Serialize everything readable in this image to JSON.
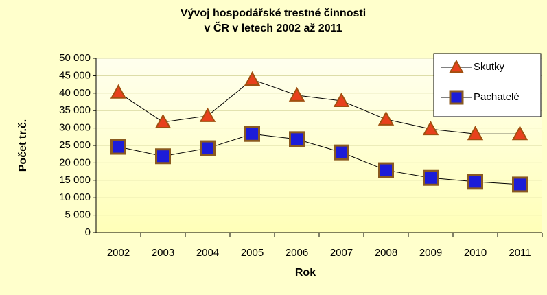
{
  "chart_data": {
    "type": "line",
    "title": [
      "Vývoj hospodářské trestné činnosti",
      "v ČR v letech 2002 až 2011"
    ],
    "x_label": "Rok",
    "y_label": "Počet tr.č.",
    "categories": [
      "2002",
      "2003",
      "2004",
      "2005",
      "2006",
      "2007",
      "2008",
      "2009",
      "2010",
      "2011"
    ],
    "series": [
      {
        "name": "Skutky",
        "color": "#e8401c",
        "marker": "triangle",
        "values": [
          40200,
          31700,
          33500,
          43900,
          39400,
          37800,
          32500,
          29700,
          28300,
          28300
        ]
      },
      {
        "name": "Pachatelé",
        "color": "#1c1cd8",
        "marker": "square",
        "values": [
          24600,
          21900,
          24200,
          28300,
          26800,
          23000,
          17900,
          15700,
          14600,
          13800
        ]
      }
    ],
    "ylim": [
      0,
      50000
    ],
    "yticks": [
      0,
      {
        "value": 5000,
        "label": "5 000"
      },
      {
        "value": 10000,
        "label": "10 000"
      },
      {
        "value": 15000,
        "label": "15 000"
      },
      {
        "value": 20000,
        "label": "20 000"
      },
      {
        "value": 25000,
        "label": "25 000"
      },
      {
        "value": 30000,
        "label": "30 000"
      },
      {
        "value": 35000,
        "label": "35 000"
      },
      {
        "value": 40000,
        "label": "40 000"
      },
      {
        "value": 45000,
        "label": "45 000"
      },
      {
        "value": 50000,
        "label": "50 000"
      }
    ],
    "grid": true,
    "legend": "top-right"
  }
}
